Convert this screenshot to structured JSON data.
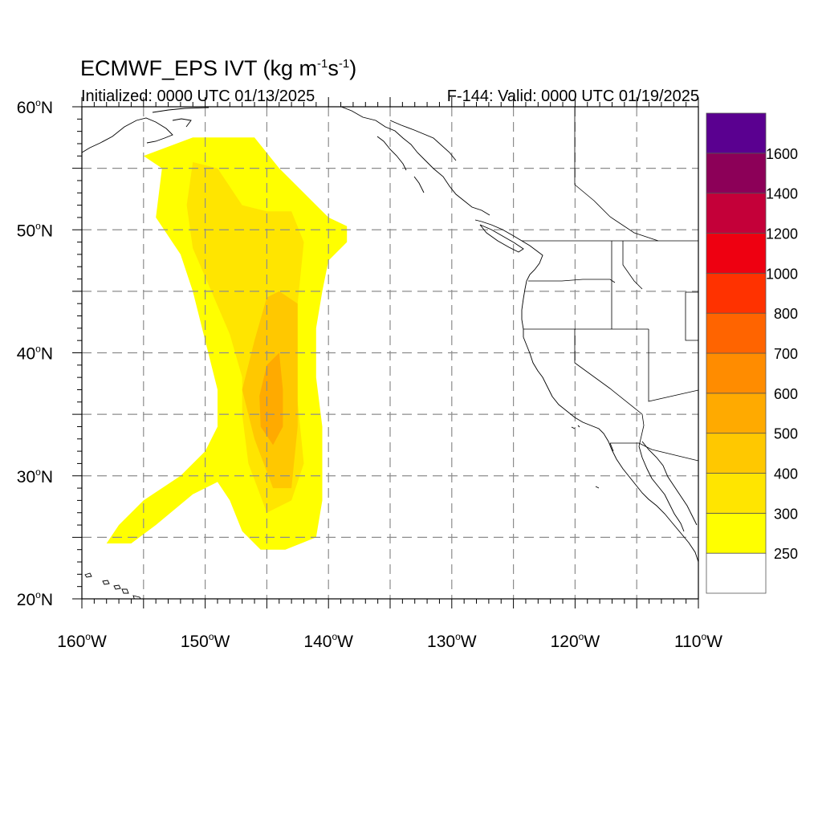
{
  "title": {
    "main": "ECMWF_EPS IVT (kg m",
    "exp1": "-1",
    "mid": "s",
    "exp2": "-1",
    "end": ")"
  },
  "subtitle": {
    "left": "Initialized: 0000 UTC 01/13/2025",
    "right": "F-144: Valid: 0000 UTC 01/19/2025"
  },
  "map": {
    "lon_range": [
      -160,
      -110
    ],
    "lat_range": [
      20,
      60
    ],
    "grid": true,
    "x_ticks": [
      {
        "lon": -160,
        "label": "160",
        "hemi": "W"
      },
      {
        "lon": -150,
        "label": "150",
        "hemi": "W"
      },
      {
        "lon": -140,
        "label": "140",
        "hemi": "W"
      },
      {
        "lon": -130,
        "label": "130",
        "hemi": "W"
      },
      {
        "lon": -120,
        "label": "120",
        "hemi": "W"
      },
      {
        "lon": -110,
        "label": "110",
        "hemi": "W"
      }
    ],
    "y_ticks": [
      {
        "lat": 60,
        "label": "60",
        "hemi": "N"
      },
      {
        "lat": 50,
        "label": "50",
        "hemi": "N"
      },
      {
        "lat": 40,
        "label": "40",
        "hemi": "N"
      },
      {
        "lat": 30,
        "label": "30",
        "hemi": "N"
      },
      {
        "lat": 20,
        "label": "20",
        "hemi": "N"
      }
    ]
  },
  "colorbar": {
    "colors": [
      "#ffffff",
      "#ffff00",
      "#ffe500",
      "#ffc800",
      "#ffaa00",
      "#ff8c00",
      "#ff6400",
      "#ff3200",
      "#ee0011",
      "#c40039",
      "#8c0058",
      "#5a0090"
    ],
    "labels": [
      "250",
      "300",
      "400",
      "500",
      "600",
      "700",
      "800",
      "1000",
      "1200",
      "1400",
      "1600"
    ]
  },
  "ivt_field": [
    {
      "level": "250-300",
      "color": "#ffff00",
      "points": [
        [
          -158,
          24.5
        ],
        [
          -157,
          26
        ],
        [
          -155,
          28
        ],
        [
          -152,
          30
        ],
        [
          -150,
          32
        ],
        [
          -149,
          34
        ],
        [
          -149,
          37
        ],
        [
          -150,
          41
        ],
        [
          -151,
          45
        ],
        [
          -152,
          48
        ],
        [
          -154,
          51
        ],
        [
          -153.5,
          55
        ],
        [
          -155,
          56
        ],
        [
          -151,
          57.5
        ],
        [
          -146,
          57.5
        ],
        [
          -144,
          55
        ],
        [
          -142,
          53
        ],
        [
          -140,
          51
        ],
        [
          -138.5,
          50.3
        ],
        [
          -138.5,
          49
        ],
        [
          -140,
          47.5
        ],
        [
          -140.5,
          45
        ],
        [
          -141,
          42
        ],
        [
          -141,
          38
        ],
        [
          -140.5,
          34
        ],
        [
          -140.5,
          28
        ],
        [
          -141,
          25
        ],
        [
          -143.5,
          24
        ],
        [
          -145.5,
          24
        ],
        [
          -147,
          25.5
        ],
        [
          -148,
          28
        ],
        [
          -149,
          29.5
        ],
        [
          -151,
          28.5
        ],
        [
          -154,
          26
        ],
        [
          -156,
          24.5
        ]
      ]
    },
    {
      "level": "300-400",
      "color": "#ffe500",
      "points": [
        [
          -151,
          55.5
        ],
        [
          -149,
          55
        ],
        [
          -147,
          52
        ],
        [
          -145,
          51.5
        ],
        [
          -143,
          51.5
        ],
        [
          -142,
          49
        ],
        [
          -142.5,
          44
        ],
        [
          -143,
          40
        ],
        [
          -142.5,
          36
        ],
        [
          -142,
          31
        ],
        [
          -143,
          28
        ],
        [
          -145,
          27
        ],
        [
          -146.5,
          31
        ],
        [
          -147,
          35
        ],
        [
          -147,
          38
        ],
        [
          -148,
          41.5
        ],
        [
          -149.5,
          45
        ],
        [
          -151,
          48.5
        ],
        [
          -151.5,
          52
        ]
      ]
    },
    {
      "level": "400-500",
      "color": "#ffc800",
      "points": [
        [
          -145,
          44.5
        ],
        [
          -144,
          45
        ],
        [
          -142.5,
          44
        ],
        [
          -142.5,
          39
        ],
        [
          -142.5,
          34
        ],
        [
          -143,
          29
        ],
        [
          -144.5,
          29
        ],
        [
          -146,
          33
        ],
        [
          -147,
          37
        ],
        [
          -146,
          41
        ]
      ]
    },
    {
      "level": "500-600",
      "color": "#ffaa00",
      "points": [
        [
          -145,
          39
        ],
        [
          -144,
          40
        ],
        [
          -143.7,
          37
        ],
        [
          -143.7,
          34
        ],
        [
          -144.5,
          32.5
        ],
        [
          -145.5,
          34
        ],
        [
          -145.6,
          36.5
        ]
      ]
    }
  ]
}
